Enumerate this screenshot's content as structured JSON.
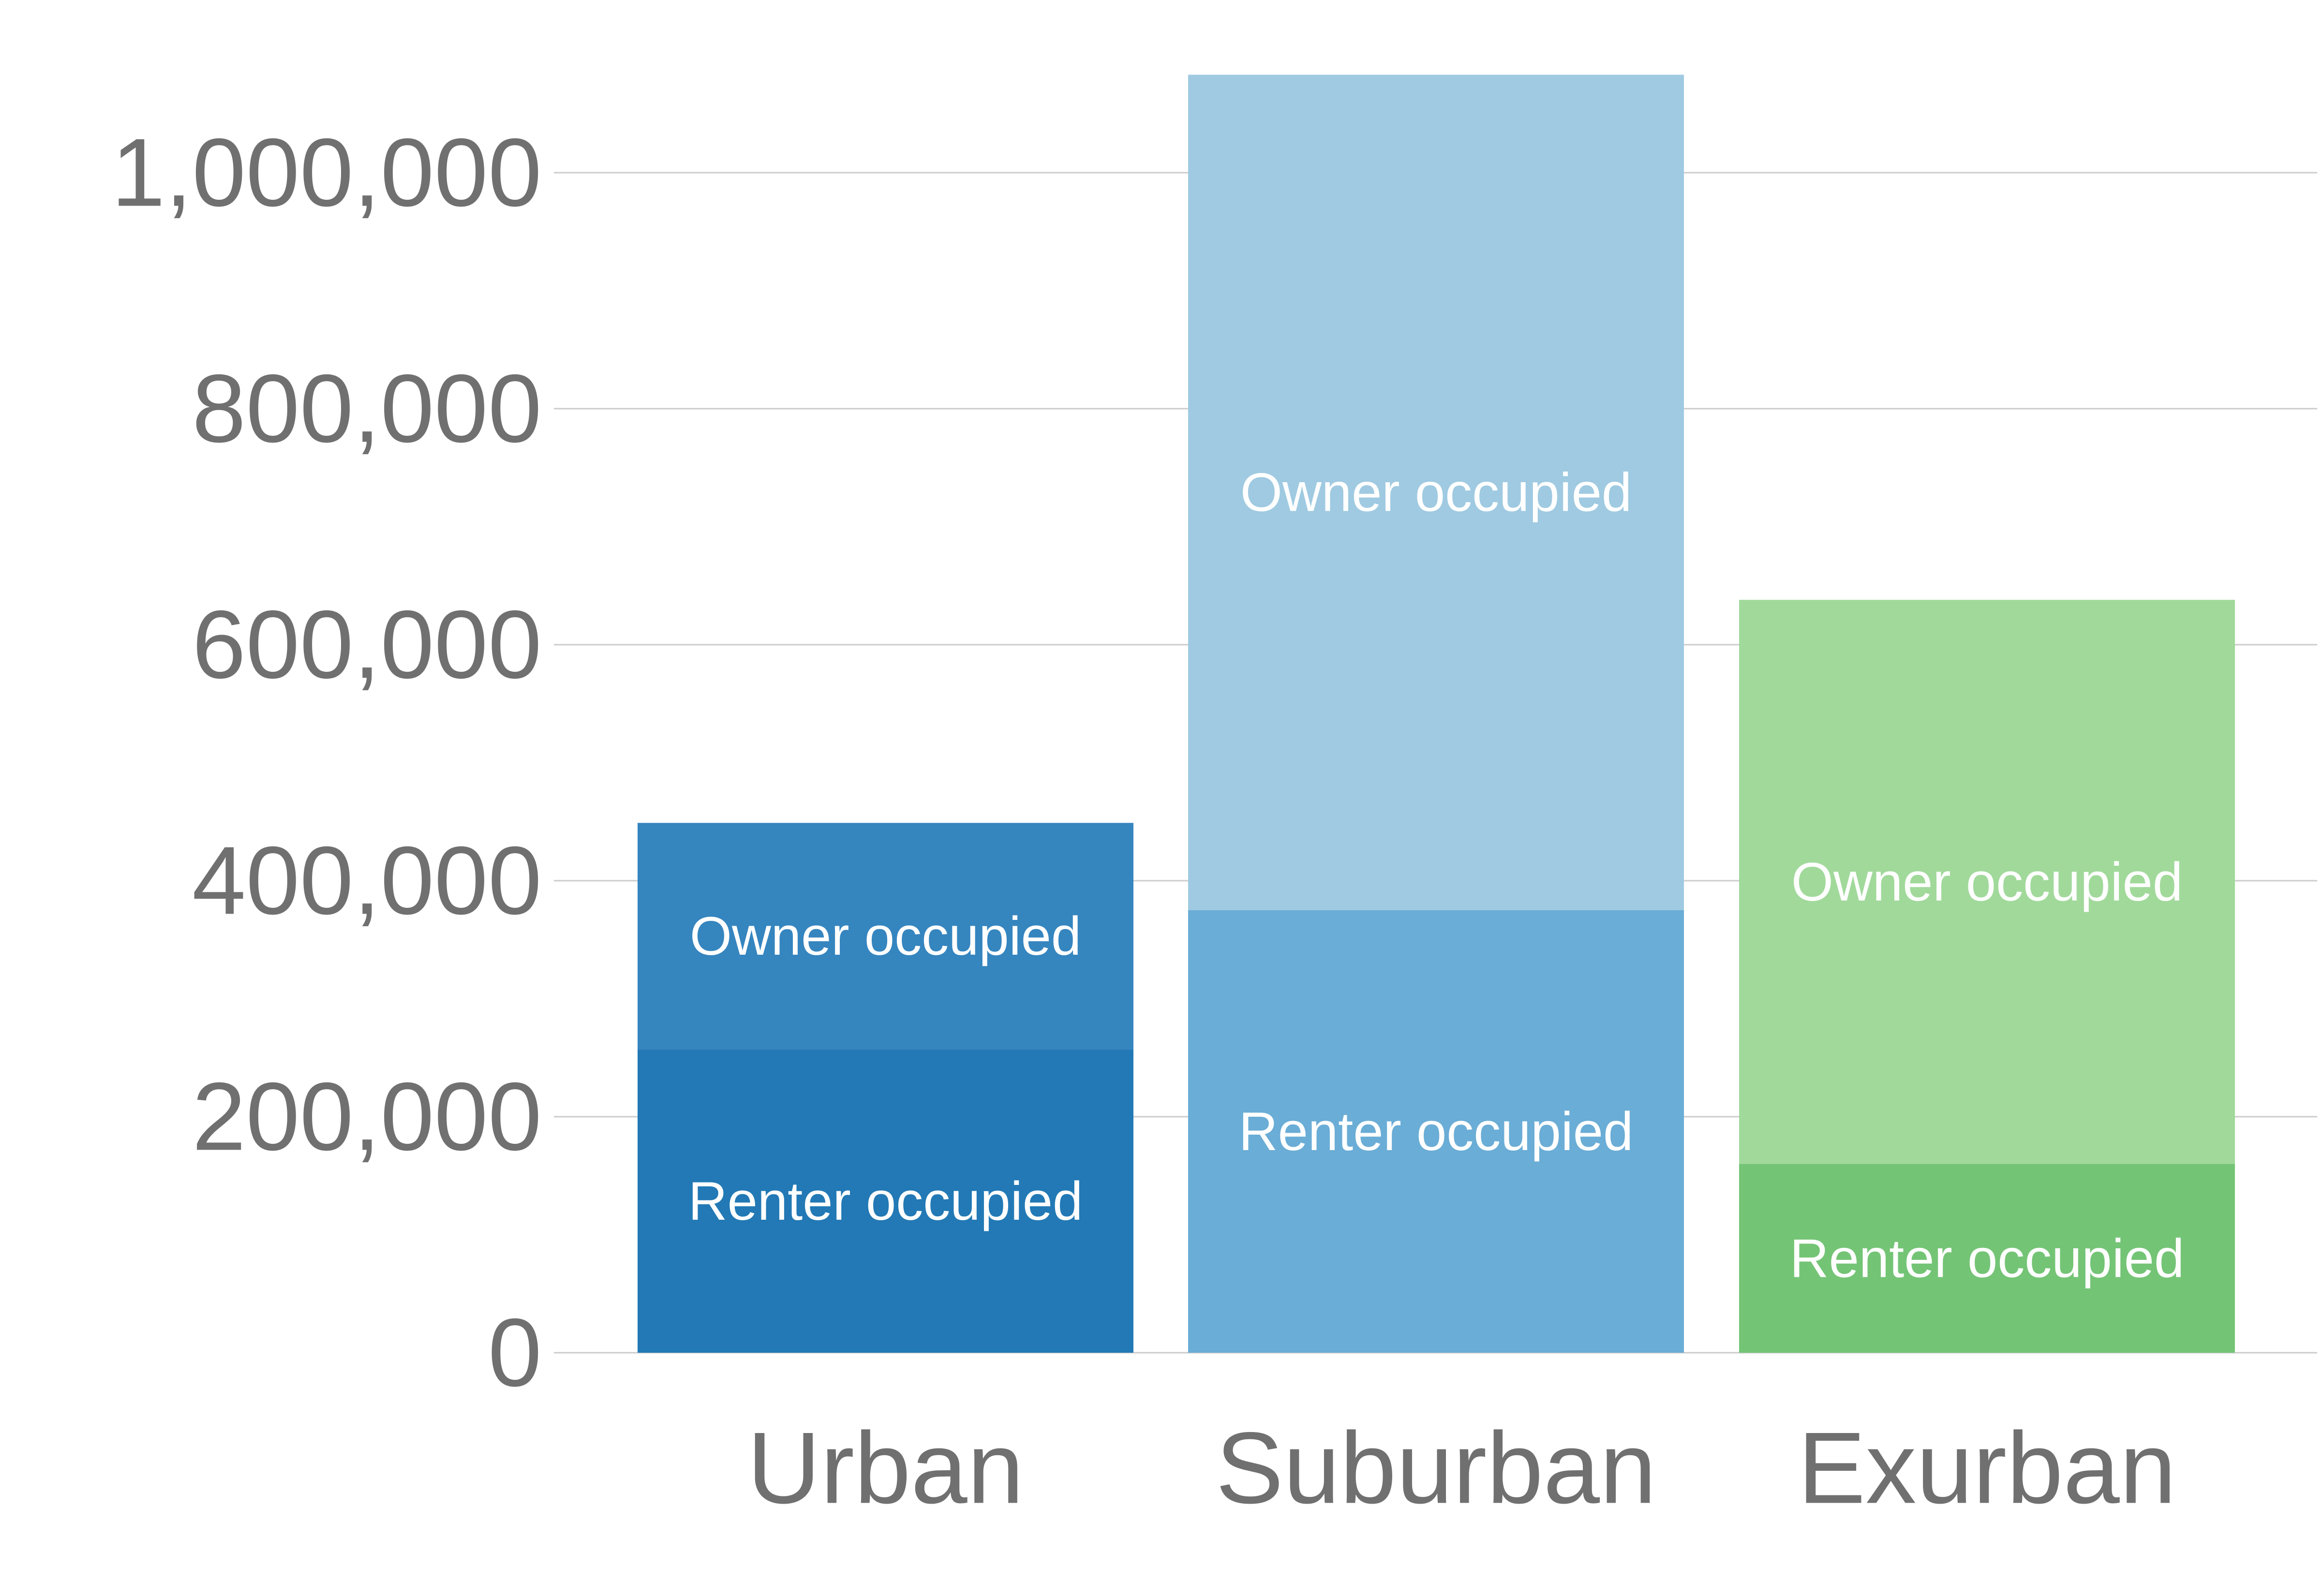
{
  "chart_data": {
    "type": "bar",
    "stacked": true,
    "categories": [
      "Urban",
      "Suburban",
      "Exurban"
    ],
    "series": [
      {
        "name": "Renter occupied",
        "values": [
          257000,
          375000,
          160000
        ],
        "colors": [
          "#2279b5",
          "#6aadd6",
          "#74c476"
        ]
      },
      {
        "name": "Owner occupied",
        "values": [
          192000,
          708000,
          478000
        ],
        "colors": [
          "#3585bf",
          "#9fcae1",
          "#a1d99b"
        ]
      }
    ],
    "ylim": [
      0,
      1100000
    ],
    "yticks": [
      0,
      200000,
      400000,
      600000,
      800000,
      1000000
    ],
    "ytick_labels": [
      "0",
      "200,000",
      "400,000",
      "600,000",
      "800,000",
      "1,000,000"
    ],
    "grid": true,
    "legend": "none",
    "title": "",
    "xlabel": "",
    "ylabel": ""
  },
  "colors": {
    "grid": "#cccccc",
    "tick_text": "#707070",
    "segment_text": "#ffffff"
  }
}
